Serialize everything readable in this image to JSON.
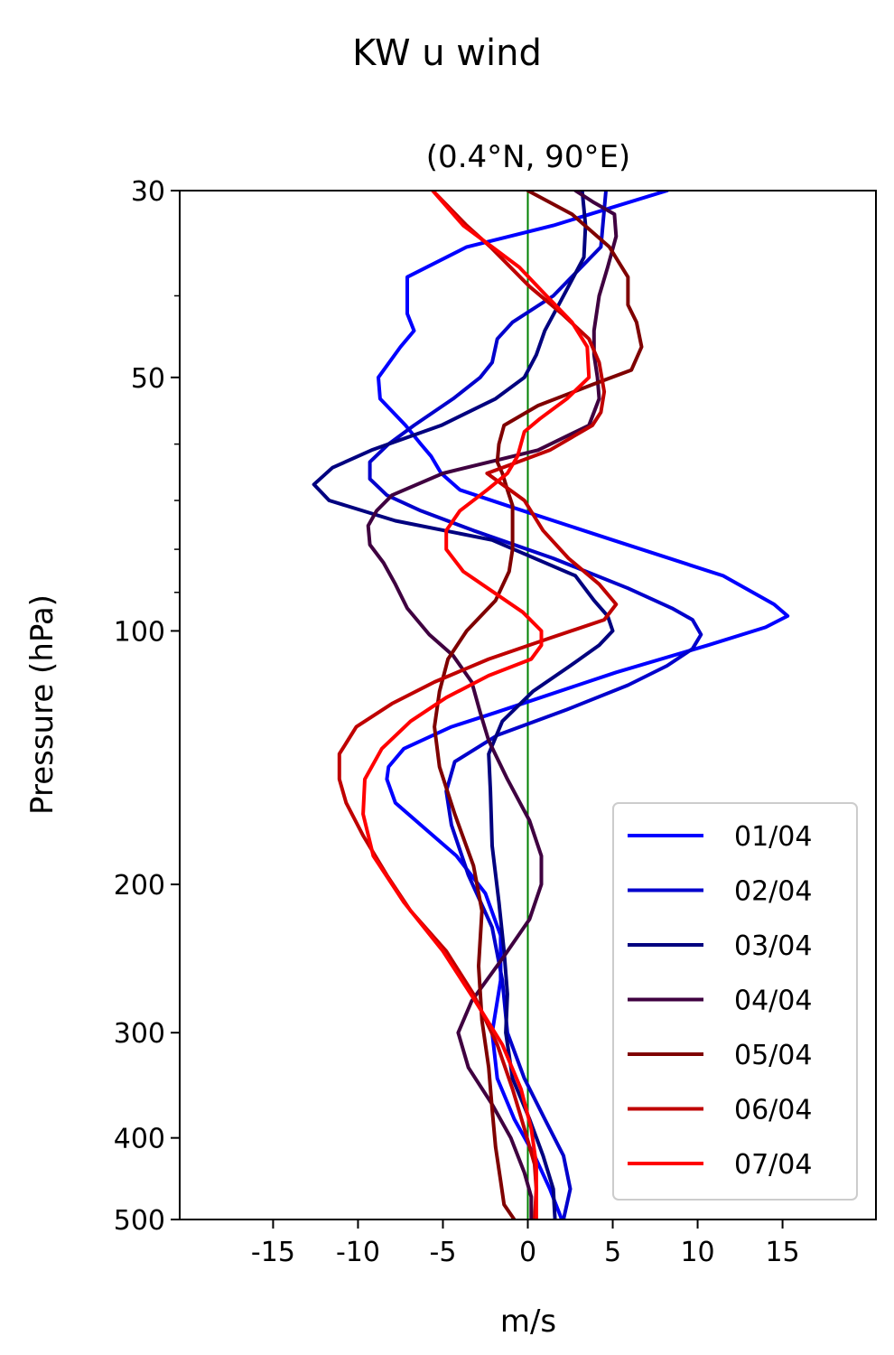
{
  "chart_data": {
    "type": "line",
    "title": "KW u wind",
    "subtitle": "(0.4°N, 90°E)",
    "xlabel": "m/s",
    "ylabel": "Pressure (hPa)",
    "xlim": [
      -20.5,
      20.5
    ],
    "ylim": [
      500,
      30
    ],
    "yscale": "log",
    "xticks": [
      -15,
      -10,
      -5,
      0,
      5,
      10,
      15
    ],
    "xtick_labels": [
      "-15",
      "-10",
      "-5",
      "0",
      "5",
      "10",
      "15"
    ],
    "yticks": [
      30,
      50,
      100,
      200,
      300,
      400,
      500
    ],
    "ytick_labels": [
      "30",
      "50",
      "100",
      "200",
      "300",
      "400",
      "500"
    ],
    "yminor_ticks": [
      40,
      60,
      70,
      80,
      90
    ],
    "zero_line": {
      "x": 0,
      "color": "#008000"
    },
    "grid": false,
    "legend_position": "lower-right",
    "series": [
      {
        "name": "01/04",
        "color": "#0000ff",
        "points": [
          [
            8.2,
            30
          ],
          [
            1.5,
            33
          ],
          [
            -3.6,
            35
          ],
          [
            -7.1,
            38
          ],
          [
            -7.1,
            42
          ],
          [
            -6.7,
            44
          ],
          [
            -7.5,
            46
          ],
          [
            -8.8,
            50
          ],
          [
            -8.7,
            53
          ],
          [
            -7.2,
            57
          ],
          [
            -6.3,
            60
          ],
          [
            -5.7,
            62
          ],
          [
            -5.1,
            65
          ],
          [
            -4.0,
            68
          ],
          [
            -1.2,
            71
          ],
          [
            5.0,
            78
          ],
          [
            11.5,
            86
          ],
          [
            14.5,
            93
          ],
          [
            15.3,
            96
          ],
          [
            14.0,
            99
          ],
          [
            10.6,
            104
          ],
          [
            5.2,
            112
          ],
          [
            -1.9,
            125
          ],
          [
            -4.5,
            130
          ],
          [
            -7.3,
            138
          ],
          [
            -8.2,
            145
          ],
          [
            -8.3,
            150
          ],
          [
            -7.8,
            160
          ],
          [
            -6.3,
            170
          ],
          [
            -4.2,
            185
          ],
          [
            -2.5,
            205
          ],
          [
            -1.6,
            230
          ],
          [
            -1.6,
            260
          ],
          [
            -2.1,
            300
          ],
          [
            -1.8,
            340
          ],
          [
            -0.8,
            380
          ],
          [
            0.4,
            420
          ],
          [
            1.3,
            460
          ],
          [
            2.0,
            500
          ]
        ]
      },
      {
        "name": "02/04",
        "color": "#0000cc",
        "points": [
          [
            4.6,
            30
          ],
          [
            4.3,
            35
          ],
          [
            1.5,
            40
          ],
          [
            -0.9,
            43
          ],
          [
            -1.8,
            45
          ],
          [
            -2.1,
            48
          ],
          [
            -2.8,
            50
          ],
          [
            -4.4,
            53
          ],
          [
            -6.7,
            57
          ],
          [
            -8.2,
            60
          ],
          [
            -9.3,
            63
          ],
          [
            -9.3,
            66
          ],
          [
            -8.3,
            69
          ],
          [
            -6.3,
            72
          ],
          [
            -3.2,
            76
          ],
          [
            1.5,
            82
          ],
          [
            5.9,
            89
          ],
          [
            8.5,
            94
          ],
          [
            9.7,
            97
          ],
          [
            10.2,
            101
          ],
          [
            9.7,
            105
          ],
          [
            8.2,
            110
          ],
          [
            5.9,
            116
          ],
          [
            2.3,
            124
          ],
          [
            -1.8,
            133
          ],
          [
            -4.3,
            143
          ],
          [
            -4.8,
            155
          ],
          [
            -4.5,
            170
          ],
          [
            -3.5,
            195
          ],
          [
            -2.1,
            225
          ],
          [
            -1.5,
            260
          ],
          [
            -1.2,
            300
          ],
          [
            -0.2,
            340
          ],
          [
            1.0,
            380
          ],
          [
            2.1,
            420
          ],
          [
            2.5,
            460
          ],
          [
            2.1,
            500
          ]
        ]
      },
      {
        "name": "03/04",
        "color": "#00007f",
        "points": [
          [
            3.2,
            30
          ],
          [
            3.4,
            33
          ],
          [
            3.3,
            36
          ],
          [
            2.1,
            40
          ],
          [
            1.0,
            44
          ],
          [
            0.5,
            47
          ],
          [
            -0.2,
            50
          ],
          [
            -1.9,
            53
          ],
          [
            -5.1,
            57
          ],
          [
            -9.2,
            61
          ],
          [
            -11.5,
            64
          ],
          [
            -12.6,
            67
          ],
          [
            -11.7,
            70
          ],
          [
            -7.8,
            74
          ],
          [
            -2.1,
            78
          ],
          [
            2.8,
            86
          ],
          [
            3.9,
            92
          ],
          [
            4.7,
            96
          ],
          [
            5.0,
            100
          ],
          [
            4.2,
            104
          ],
          [
            2.5,
            110
          ],
          [
            0.3,
            118
          ],
          [
            -1.5,
            128
          ],
          [
            -2.3,
            140
          ],
          [
            -2.2,
            155
          ],
          [
            -2.1,
            180
          ],
          [
            -1.7,
            210
          ],
          [
            -1.4,
            240
          ],
          [
            -1.2,
            270
          ],
          [
            -1.3,
            300
          ],
          [
            -0.9,
            340
          ],
          [
            0.1,
            380
          ],
          [
            0.9,
            420
          ],
          [
            1.5,
            460
          ],
          [
            1.6,
            500
          ]
        ]
      },
      {
        "name": "04/04",
        "color": "#3f0040",
        "points": [
          [
            2.8,
            30
          ],
          [
            3.9,
            31
          ],
          [
            5.1,
            32
          ],
          [
            5.2,
            34
          ],
          [
            4.7,
            37
          ],
          [
            4.2,
            40
          ],
          [
            3.9,
            44
          ],
          [
            3.9,
            47
          ],
          [
            4.1,
            50
          ],
          [
            4.2,
            53
          ],
          [
            3.6,
            57
          ],
          [
            0.6,
            61
          ],
          [
            -5.0,
            65
          ],
          [
            -8.0,
            69
          ],
          [
            -8.9,
            72
          ],
          [
            -9.4,
            75
          ],
          [
            -9.3,
            79
          ],
          [
            -8.5,
            83
          ],
          [
            -7.8,
            88
          ],
          [
            -7.1,
            94
          ],
          [
            -5.8,
            101
          ],
          [
            -4.4,
            107
          ],
          [
            -3.3,
            115
          ],
          [
            -2.8,
            125
          ],
          [
            -2.3,
            135
          ],
          [
            -1.2,
            150
          ],
          [
            0.1,
            168
          ],
          [
            0.8,
            185
          ],
          [
            0.8,
            200
          ],
          [
            0.1,
            220
          ],
          [
            -1.5,
            245
          ],
          [
            -3.3,
            275
          ],
          [
            -4.1,
            300
          ],
          [
            -3.5,
            330
          ],
          [
            -2.1,
            365
          ],
          [
            -1.0,
            400
          ],
          [
            -0.2,
            440
          ],
          [
            0.2,
            470
          ],
          [
            0.2,
            500
          ]
        ]
      },
      {
        "name": "05/04",
        "color": "#7f0000",
        "points": [
          [
            0.0,
            30
          ],
          [
            2.6,
            32
          ],
          [
            4.8,
            35
          ],
          [
            5.9,
            38
          ],
          [
            5.9,
            41
          ],
          [
            6.4,
            43
          ],
          [
            6.7,
            46
          ],
          [
            6.1,
            49
          ],
          [
            3.8,
            51
          ],
          [
            0.6,
            54
          ],
          [
            -1.4,
            57
          ],
          [
            -1.7,
            60
          ],
          [
            -1.8,
            63
          ],
          [
            -1.5,
            65
          ],
          [
            -1.2,
            68
          ],
          [
            -0.9,
            71
          ],
          [
            -0.9,
            75
          ],
          [
            -0.9,
            80
          ],
          [
            -1.1,
            85
          ],
          [
            -1.9,
            92
          ],
          [
            -3.6,
            100
          ],
          [
            -4.7,
            108
          ],
          [
            -5.2,
            118
          ],
          [
            -5.5,
            130
          ],
          [
            -5.2,
            145
          ],
          [
            -4.3,
            165
          ],
          [
            -3.2,
            190
          ],
          [
            -2.7,
            215
          ],
          [
            -2.9,
            250
          ],
          [
            -2.7,
            290
          ],
          [
            -2.3,
            330
          ],
          [
            -2.1,
            370
          ],
          [
            -1.9,
            410
          ],
          [
            -1.6,
            450
          ],
          [
            -1.4,
            480
          ],
          [
            -0.8,
            500
          ]
        ]
      },
      {
        "name": "06/04",
        "color": "#bf0000",
        "points": [
          [
            -5.6,
            30
          ],
          [
            -3.6,
            33
          ],
          [
            -2.2,
            35
          ],
          [
            0.1,
            39
          ],
          [
            2.0,
            42
          ],
          [
            3.6,
            45
          ],
          [
            4.2,
            48
          ],
          [
            4.5,
            52
          ],
          [
            4.3,
            55
          ],
          [
            3.8,
            57
          ],
          [
            1.3,
            61
          ],
          [
            -2.4,
            65
          ],
          [
            -0.2,
            70
          ],
          [
            0.9,
            76
          ],
          [
            2.4,
            82
          ],
          [
            4.2,
            88
          ],
          [
            5.2,
            93
          ],
          [
            4.5,
            97
          ],
          [
            1.3,
            102
          ],
          [
            -2.3,
            108
          ],
          [
            -5.5,
            115
          ],
          [
            -8.0,
            122
          ],
          [
            -10.1,
            130
          ],
          [
            -11.1,
            140
          ],
          [
            -11.1,
            150
          ],
          [
            -10.7,
            160
          ],
          [
            -9.7,
            175
          ],
          [
            -8.3,
            195
          ],
          [
            -6.9,
            215
          ],
          [
            -4.8,
            240
          ],
          [
            -3.2,
            270
          ],
          [
            -1.8,
            310
          ],
          [
            -0.9,
            350
          ],
          [
            -0.2,
            390
          ],
          [
            0.4,
            430
          ],
          [
            0.5,
            460
          ],
          [
            0.4,
            500
          ]
        ]
      },
      {
        "name": "07/04",
        "color": "#ff0000",
        "points": [
          [
            -5.6,
            30
          ],
          [
            -3.8,
            33
          ],
          [
            -2.1,
            35
          ],
          [
            -0.5,
            37
          ],
          [
            1.1,
            40
          ],
          [
            2.6,
            43
          ],
          [
            3.5,
            46
          ],
          [
            3.6,
            50
          ],
          [
            2.3,
            53
          ],
          [
            0.7,
            56
          ],
          [
            -0.2,
            58
          ],
          [
            -0.6,
            62
          ],
          [
            -1.2,
            65
          ],
          [
            -2.4,
            68
          ],
          [
            -4.0,
            72
          ],
          [
            -4.8,
            76
          ],
          [
            -4.8,
            80
          ],
          [
            -3.8,
            85
          ],
          [
            -2.0,
            90
          ],
          [
            -0.3,
            95
          ],
          [
            0.8,
            100
          ],
          [
            0.8,
            104
          ],
          [
            0.2,
            108
          ],
          [
            -2.3,
            113
          ],
          [
            -4.8,
            120
          ],
          [
            -6.9,
            128
          ],
          [
            -8.6,
            138
          ],
          [
            -9.6,
            150
          ],
          [
            -9.7,
            165
          ],
          [
            -9.1,
            185
          ],
          [
            -7.3,
            210
          ],
          [
            -5.0,
            240
          ],
          [
            -3.1,
            275
          ],
          [
            -1.5,
            310
          ],
          [
            -0.4,
            350
          ],
          [
            0.2,
            390
          ],
          [
            0.5,
            430
          ],
          [
            0.5,
            460
          ],
          [
            0.5,
            500
          ]
        ]
      }
    ]
  }
}
